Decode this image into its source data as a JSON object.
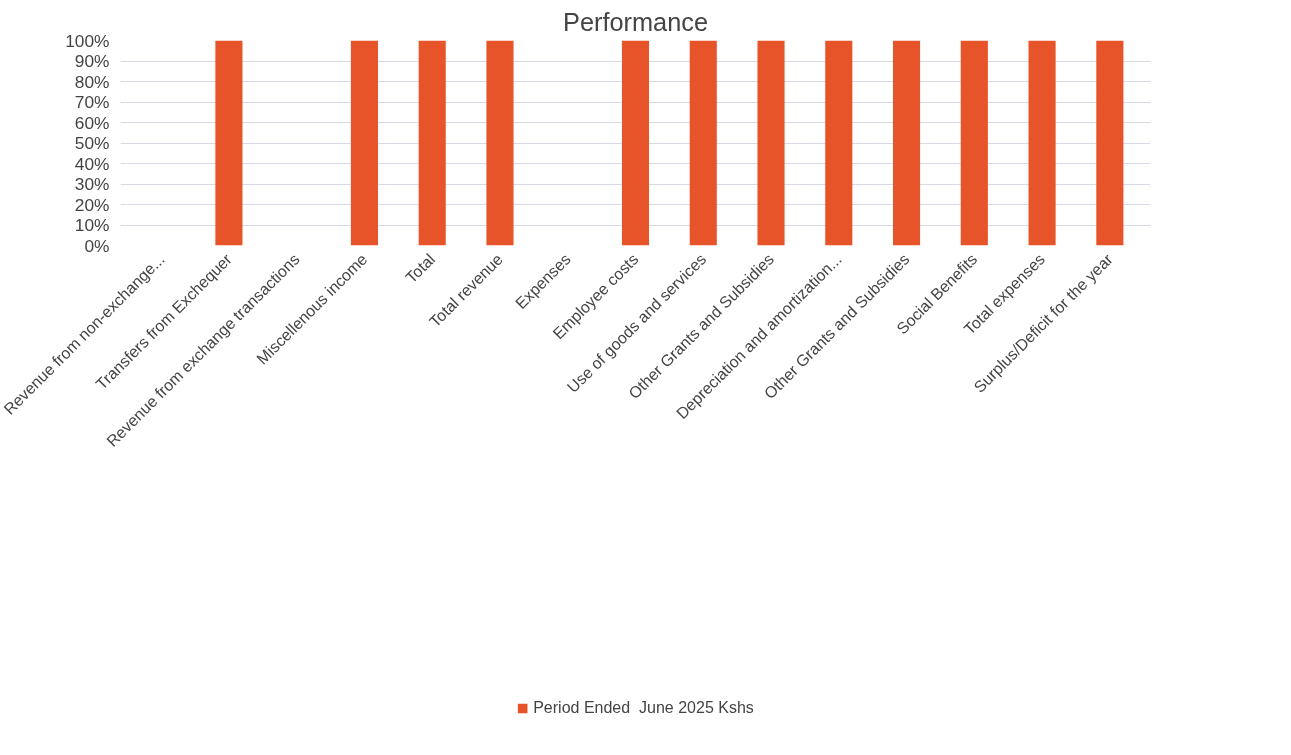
{
  "chart_data": {
    "type": "bar",
    "title": "Performance",
    "categories": [
      "Revenue from non-exchange...",
      "Transfers from Exchequer",
      "Revenue from exchange transactions",
      "Miscellenous income",
      "Total",
      "Total revenue",
      "Expenses",
      "Employee costs",
      "Use of goods and services",
      "Other Grants and Subsidies",
      "Depreciation and amortization...",
      "Other Grants and Subsidies",
      "Social Benefits",
      "Total expenses",
      "Surplus/Deficit for the year"
    ],
    "series": [
      {
        "name": "Period Ended  June 2025 Kshs",
        "color": "#e8542a",
        "values": [
          null,
          100,
          null,
          100,
          100,
          100,
          null,
          100,
          100,
          100,
          100,
          100,
          100,
          100,
          100
        ]
      }
    ],
    "ylim": [
      0,
      100
    ],
    "yticks": [
      {
        "value": 0,
        "label": "0%"
      },
      {
        "value": 10,
        "label": "10%"
      },
      {
        "value": 20,
        "label": "20%"
      },
      {
        "value": 30,
        "label": "30%"
      },
      {
        "value": 40,
        "label": "40%"
      },
      {
        "value": 50,
        "label": "50%"
      },
      {
        "value": 60,
        "label": "60%"
      },
      {
        "value": 70,
        "label": "70%"
      },
      {
        "value": 80,
        "label": "80%"
      },
      {
        "value": 90,
        "label": "90%"
      },
      {
        "value": 100,
        "label": "100%"
      }
    ],
    "grid": "y",
    "legend": "bottom"
  }
}
